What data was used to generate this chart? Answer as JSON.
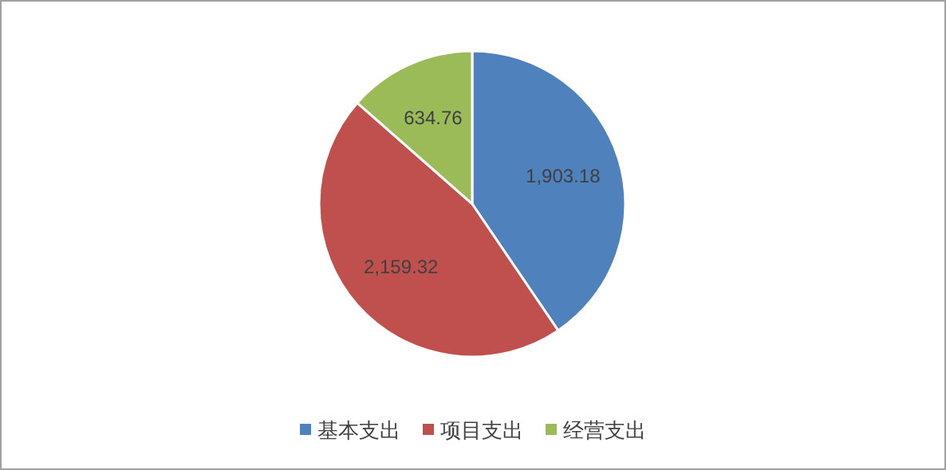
{
  "chart_data": {
    "type": "pie",
    "categories": [
      "基本支出",
      "项目支出",
      "经营支出"
    ],
    "values": [
      1903.18,
      2159.32,
      634.76
    ],
    "value_labels": [
      "1,903.18",
      "2,159.32",
      "634.76"
    ],
    "colors": [
      "#4f81bd",
      "#c0504d",
      "#9bbb59"
    ],
    "legend": "bottom"
  }
}
